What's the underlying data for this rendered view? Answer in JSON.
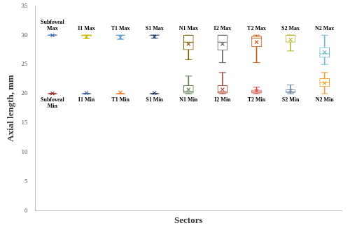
{
  "chart_data": {
    "type": "boxplot",
    "x_label": "Sectors",
    "y_label": "Axial length, mm",
    "ylim": [
      0,
      35
    ],
    "yticks": [
      0,
      5,
      10,
      15,
      20,
      25,
      30,
      35
    ],
    "grid": false,
    "tick_labels": "y",
    "marker": "x",
    "series": [
      {
        "labels": [
          "Subfoveal Max",
          "I1 Max",
          "T1 Max",
          "S1 Max",
          "N1 Max",
          "I2 Max",
          "T2 Max",
          "S2 Max",
          "N2 Max"
        ],
        "colors": [
          "#4472c4",
          "#c9b800",
          "#5b9bd5",
          "#264478",
          "#7f6000",
          "#636363",
          "#c55a11",
          "#b5b52f",
          "#6fb8c9"
        ],
        "min": [
          30,
          29.4,
          29.3,
          29.5,
          25.8,
          25.3,
          25.3,
          27.3,
          25
        ],
        "q1": [
          30,
          29.8,
          30,
          30,
          27.5,
          27.4,
          28,
          28.8,
          26.2
        ],
        "median": [
          30,
          30,
          30,
          30,
          28.8,
          28.8,
          29.5,
          30,
          26.8
        ],
        "q3": [
          30,
          30,
          30,
          30,
          30,
          30,
          29.8,
          30,
          27.9
        ],
        "max": [
          30,
          30,
          30,
          30,
          30,
          30,
          30,
          30,
          30
        ],
        "mean": [
          29.95,
          29.75,
          29.6,
          29.7,
          28.5,
          28.5,
          28.8,
          29.2,
          27.1
        ]
      },
      {
        "labels": [
          "Subfoveal Min",
          "I1 Min",
          "T1 Min",
          "S1 Min",
          "N1 Min",
          "I2 Min",
          "T2 Min",
          "S2 Min",
          "N2 Min"
        ],
        "colors": [
          "#9e2a2b",
          "#3b5fa0",
          "#ed7d31",
          "#2f3d6b",
          "#5e7d4e",
          "#b04a3a",
          "#d9534f",
          "#6f86a8",
          "#f0a030"
        ],
        "min": [
          20,
          20,
          20,
          20,
          20,
          20,
          20,
          20,
          20
        ],
        "q1": [
          20,
          20,
          20,
          20,
          20.1,
          20.1,
          20.1,
          20.2,
          21.2
        ],
        "median": [
          20,
          20,
          20,
          20,
          20.4,
          20.3,
          20.3,
          20.3,
          21.9
        ],
        "q3": [
          20,
          20,
          20,
          20,
          21.4,
          21.4,
          20.6,
          20.7,
          22.6
        ],
        "max": [
          20,
          20,
          20,
          20,
          23,
          23.6,
          21.1,
          21.5,
          23.6
        ],
        "mean": [
          20.05,
          20.1,
          20.2,
          20.1,
          20.7,
          20.7,
          20.5,
          20.5,
          21.8
        ]
      }
    ]
  }
}
